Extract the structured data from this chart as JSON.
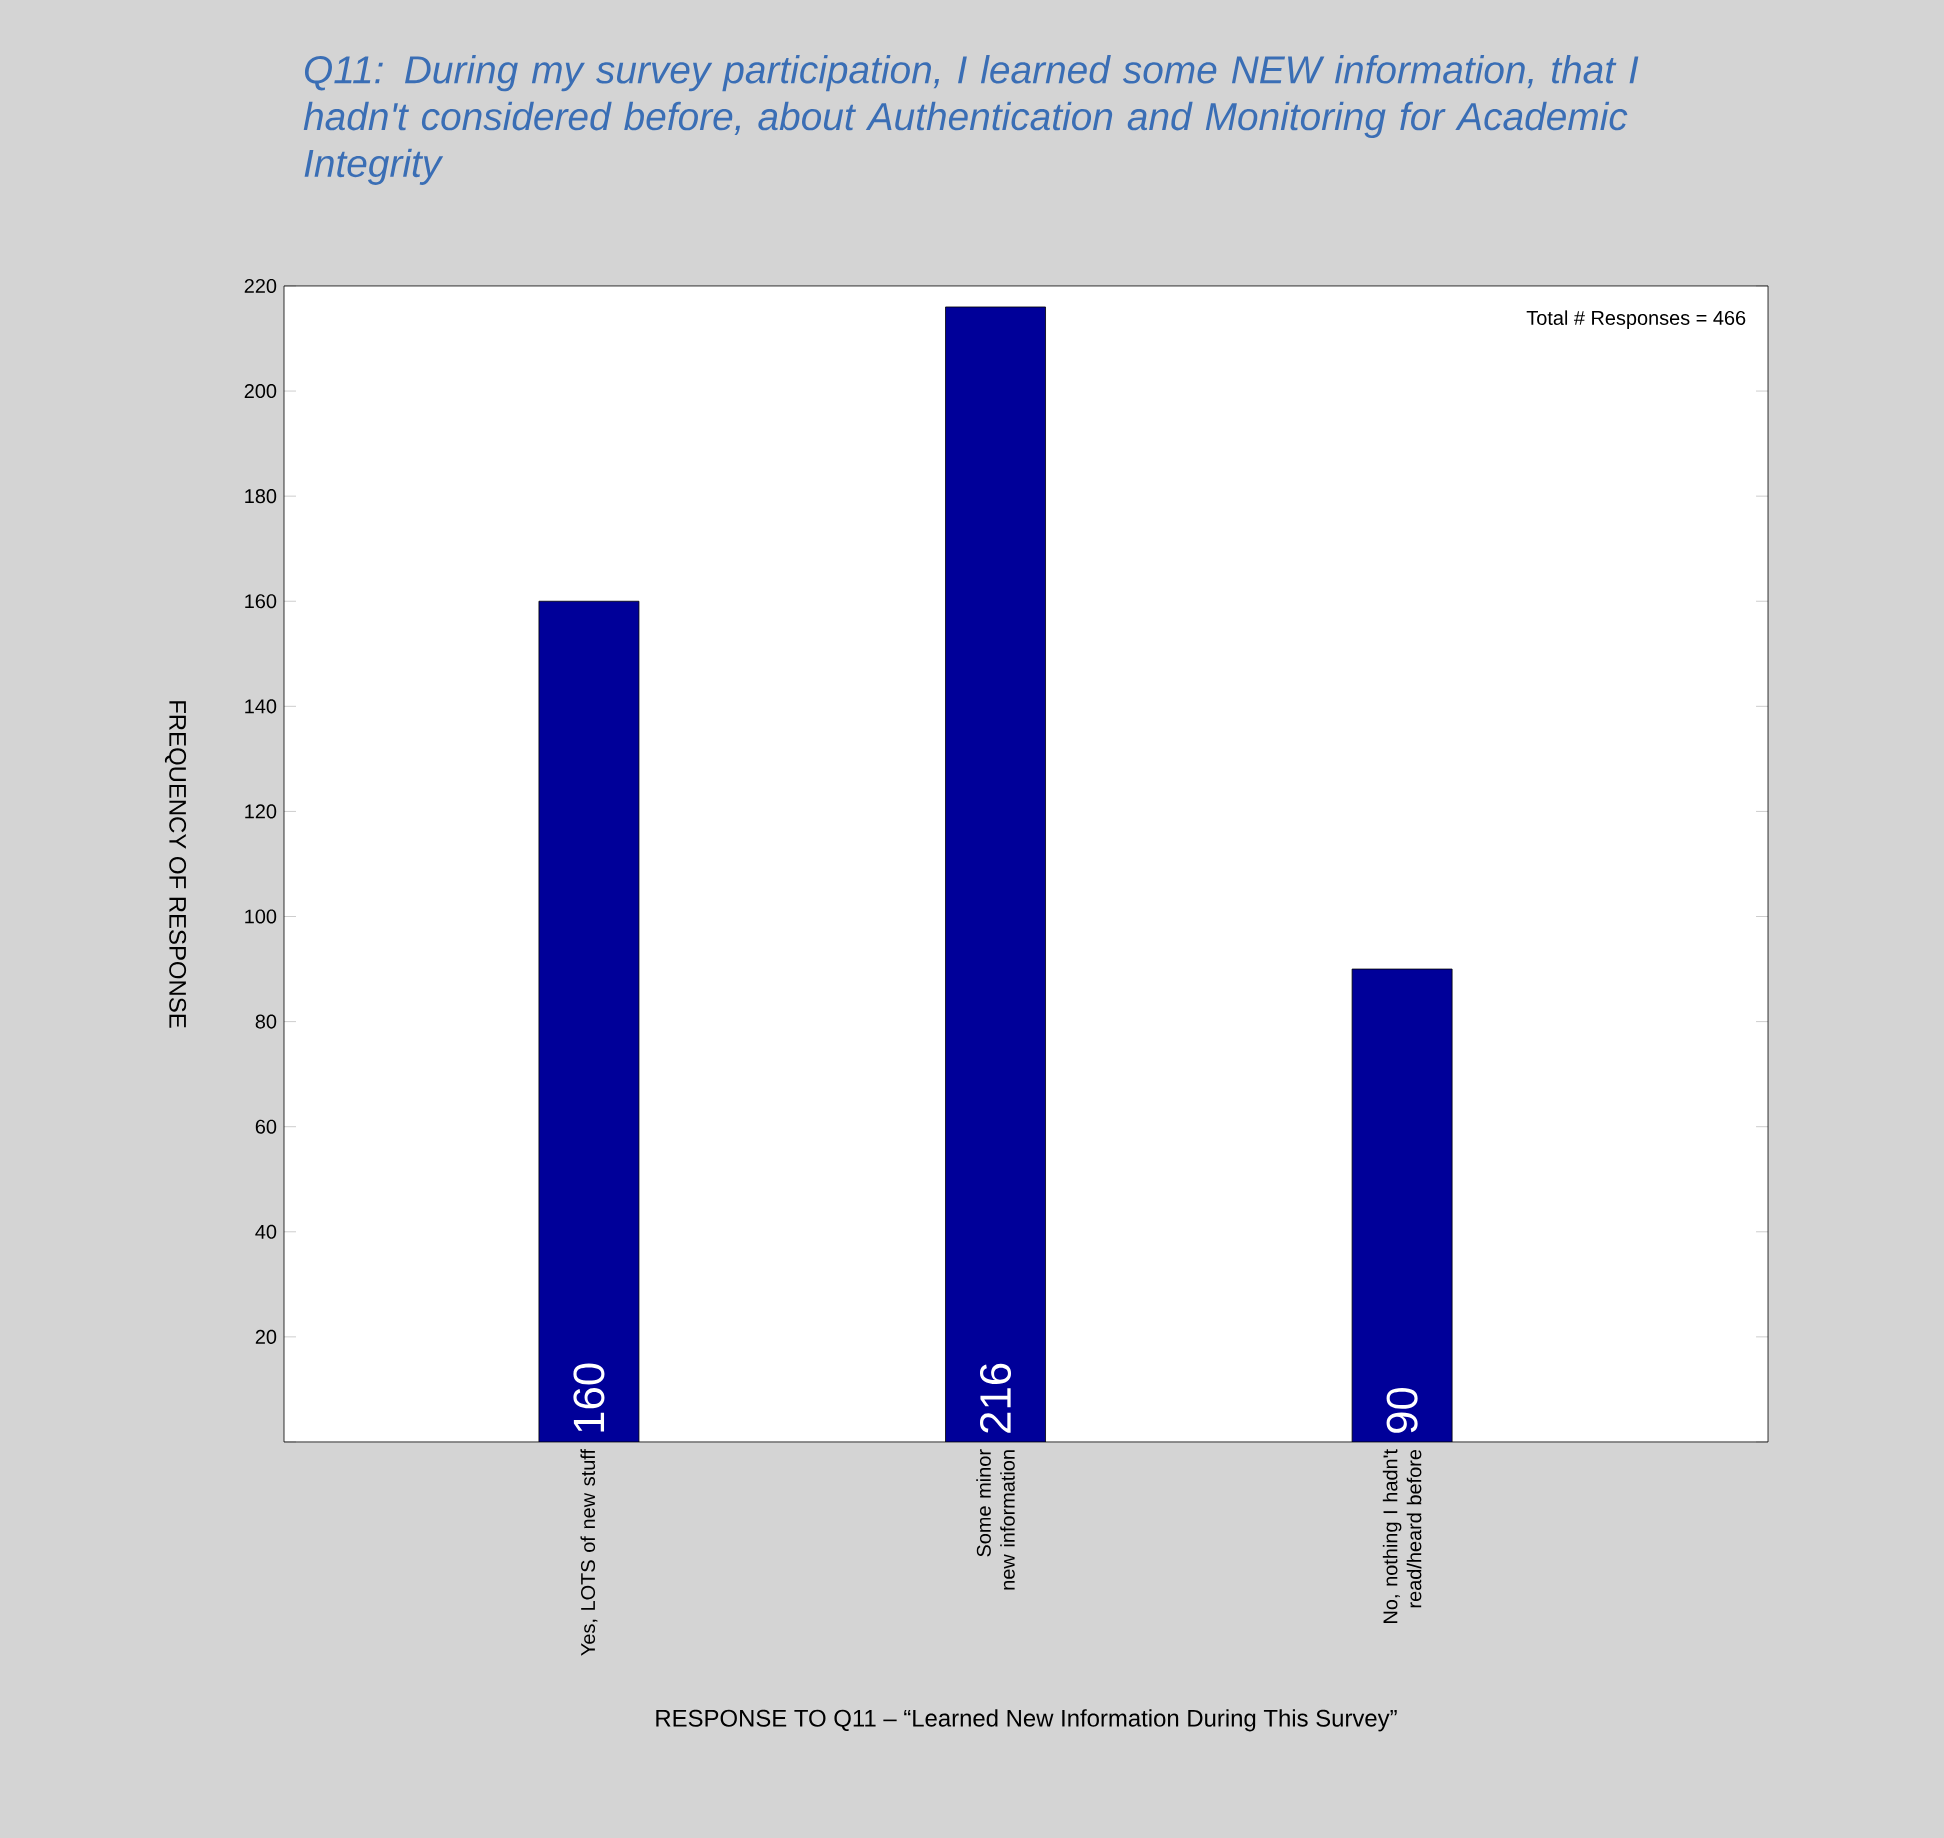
{
  "chart_data": {
    "type": "bar",
    "title": "Q11: During my survey participation, I learned some NEW information, that I hadn't considered before, about Authentication and Monitoring for Academic Integrity",
    "xlabel": "RESPONSE TO Q11 – “Learned New Information During This Survey”",
    "ylabel": "FREQUENCY OF RESPONSE",
    "categories": [
      "Yes, LOTS of new stuff",
      "Some minor new information",
      "No, nothing I hadn't read/heard before"
    ],
    "values": [
      160,
      216,
      90
    ],
    "color": "#000099",
    "ylim": [
      0,
      220
    ],
    "yticks": [
      {
        "value": 0,
        "label": null
      },
      20,
      40,
      60,
      80,
      100,
      120,
      140,
      160,
      180,
      200,
      220
    ],
    "data_labels": true,
    "grid": false,
    "annotations": [
      "Total # Responses = 466"
    ]
  }
}
